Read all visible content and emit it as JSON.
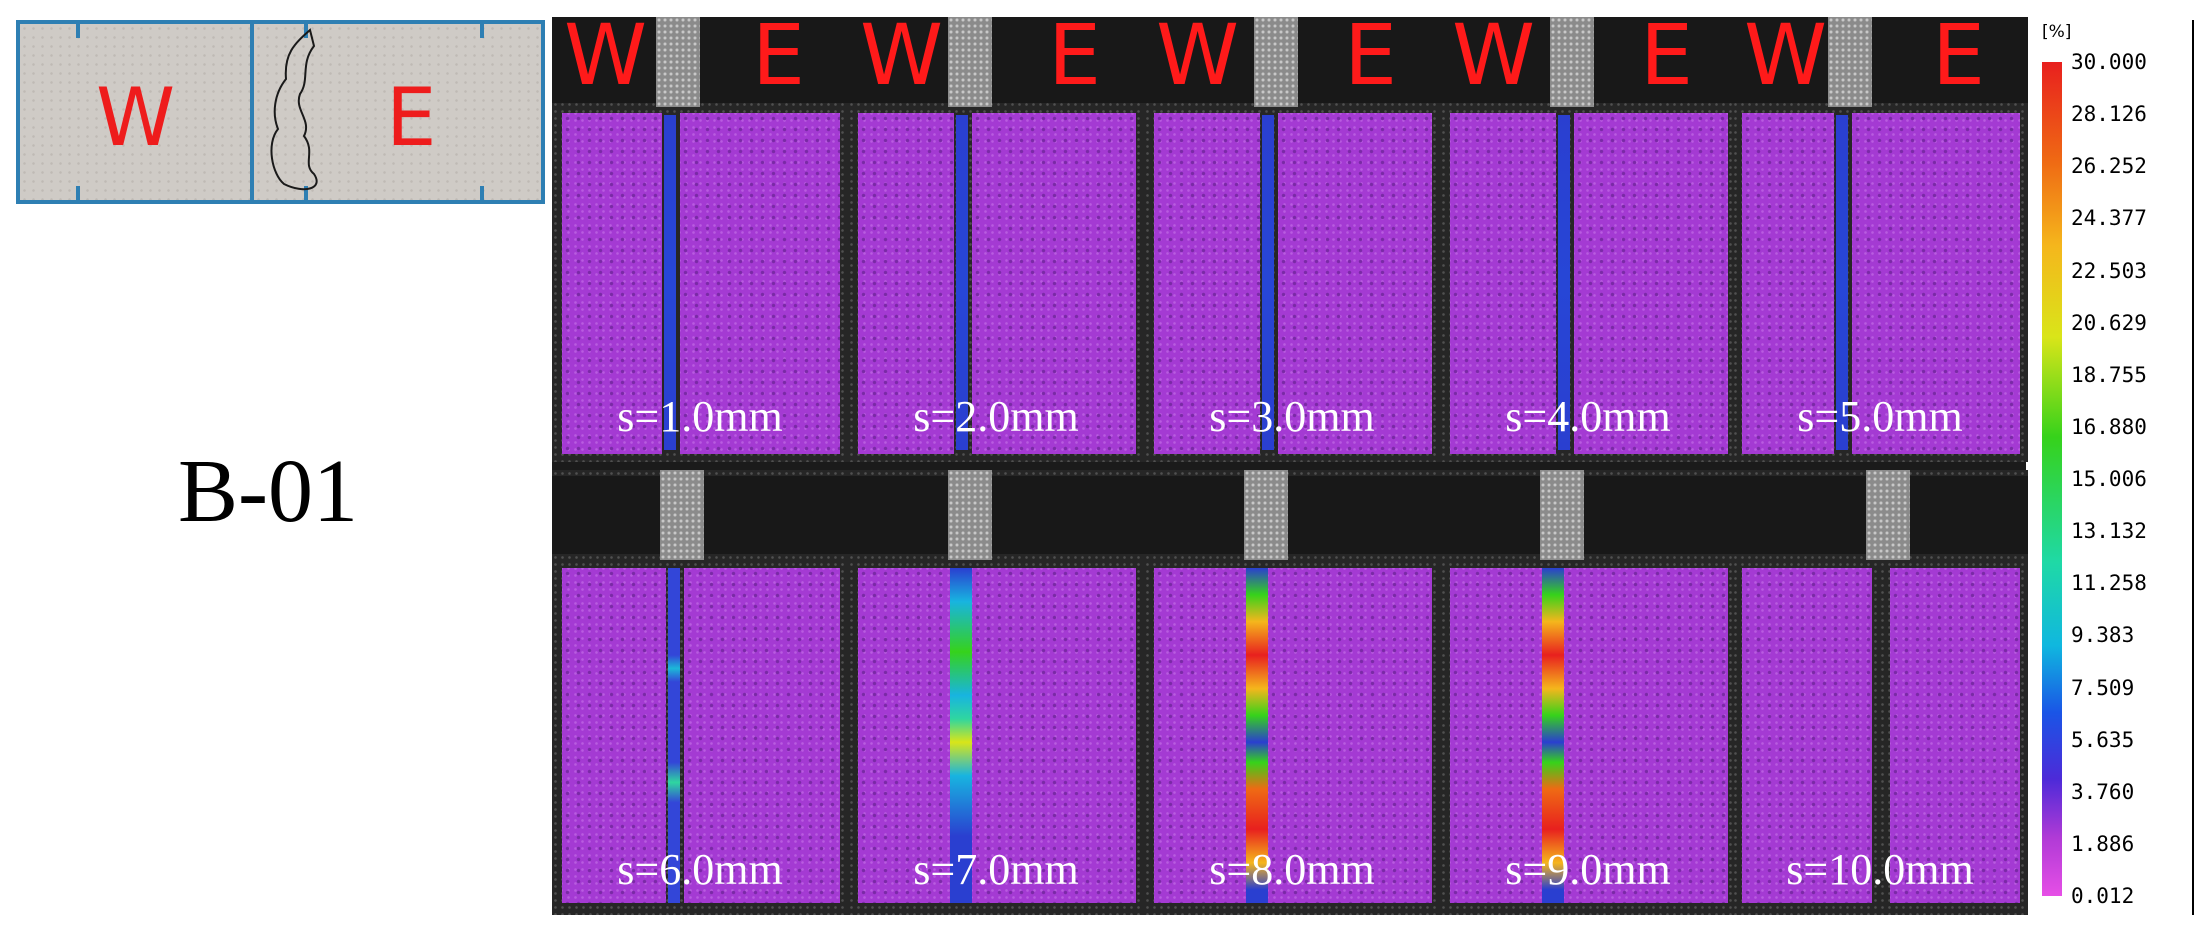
{
  "schematic": {
    "west_label": "W",
    "east_label": "E"
  },
  "specimen": {
    "label": "B-01"
  },
  "panel_letters": {
    "west": "W",
    "east": "E"
  },
  "panels": [
    {
      "caption": "s=1.0mm",
      "crack_max": "low"
    },
    {
      "caption": "s=2.0mm",
      "crack_max": "low"
    },
    {
      "caption": "s=3.0mm",
      "crack_max": "low"
    },
    {
      "caption": "s=4.0mm",
      "crack_max": "low"
    },
    {
      "caption": "s=5.0mm",
      "crack_max": "low"
    },
    {
      "caption": "s=6.0mm",
      "crack_max": "medium"
    },
    {
      "caption": "s=7.0mm",
      "crack_max": "high"
    },
    {
      "caption": "s=8.0mm",
      "crack_max": "very-high"
    },
    {
      "caption": "s=9.0mm",
      "crack_max": "very-high"
    },
    {
      "caption": "s=10.0mm",
      "crack_max": "none"
    }
  ],
  "colorbar": {
    "unit": "[%]",
    "ticks": [
      "30.000",
      "28.126",
      "26.252",
      "24.377",
      "22.503",
      "20.629",
      "18.755",
      "16.880",
      "15.006",
      "13.132",
      "11.258",
      "9.383",
      "7.509",
      "5.635",
      "3.760",
      "1.886",
      "0.012"
    ]
  }
}
